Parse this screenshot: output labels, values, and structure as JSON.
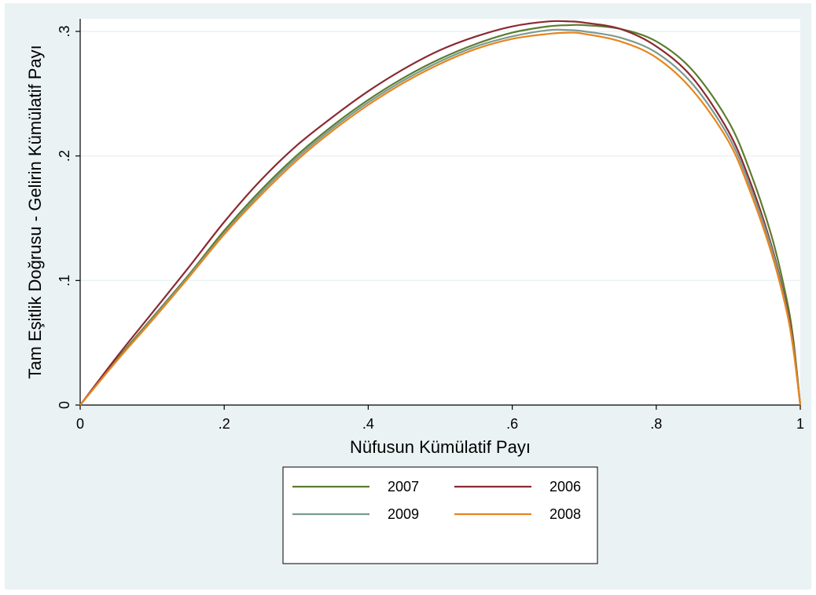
{
  "chart_data": {
    "type": "line",
    "title": "",
    "xlabel": "Nüfusun Kümülatif Payı",
    "ylabel": "Tam Eşitlik Doğrusu - Gelirin Kümülatif Payı",
    "xlim": [
      0,
      1
    ],
    "ylim": [
      0,
      0.3
    ],
    "x_ticks": [
      {
        "value": 0,
        "label": "0"
      },
      {
        "value": 0.2,
        "label": ".2"
      },
      {
        "value": 0.4,
        "label": ".4"
      },
      {
        "value": 0.6,
        "label": ".6"
      },
      {
        "value": 0.8,
        "label": ".8"
      },
      {
        "value": 1,
        "label": "1"
      }
    ],
    "y_ticks": [
      {
        "value": 0,
        "label": "0"
      },
      {
        "value": 0.1,
        "label": ".1"
      },
      {
        "value": 0.2,
        "label": ".2"
      },
      {
        "value": 0.3,
        "label": ".3"
      }
    ],
    "grid": "horizontal",
    "legend_position": "bottom",
    "series": [
      {
        "name": "2007",
        "color": "#5b7d2d",
        "x": [
          0,
          0.05,
          0.1,
          0.15,
          0.2,
          0.25,
          0.3,
          0.35,
          0.4,
          0.45,
          0.5,
          0.55,
          0.6,
          0.65,
          0.68,
          0.7,
          0.75,
          0.8,
          0.85,
          0.9,
          0.93,
          0.96,
          0.98,
          0.99,
          1
        ],
        "y": [
          0,
          0.036,
          0.07,
          0.104,
          0.14,
          0.172,
          0.2,
          0.224,
          0.245,
          0.263,
          0.278,
          0.29,
          0.299,
          0.304,
          0.305,
          0.305,
          0.302,
          0.292,
          0.269,
          0.228,
          0.188,
          0.136,
          0.088,
          0.054,
          0
        ]
      },
      {
        "name": "2006",
        "color": "#8b2a33",
        "x": [
          0,
          0.05,
          0.1,
          0.15,
          0.2,
          0.25,
          0.3,
          0.35,
          0.4,
          0.45,
          0.5,
          0.55,
          0.6,
          0.65,
          0.68,
          0.7,
          0.75,
          0.8,
          0.85,
          0.9,
          0.93,
          0.96,
          0.98,
          0.99,
          1
        ],
        "y": [
          0,
          0.038,
          0.074,
          0.11,
          0.147,
          0.18,
          0.208,
          0.231,
          0.252,
          0.27,
          0.285,
          0.296,
          0.304,
          0.308,
          0.308,
          0.307,
          0.302,
          0.288,
          0.263,
          0.22,
          0.18,
          0.128,
          0.082,
          0.05,
          0
        ]
      },
      {
        "name": "2009",
        "color": "#7a9a93",
        "x": [
          0,
          0.05,
          0.1,
          0.15,
          0.2,
          0.25,
          0.3,
          0.35,
          0.4,
          0.45,
          0.5,
          0.55,
          0.6,
          0.65,
          0.68,
          0.7,
          0.75,
          0.8,
          0.85,
          0.9,
          0.93,
          0.96,
          0.98,
          0.99,
          1
        ],
        "y": [
          0,
          0.035,
          0.069,
          0.103,
          0.138,
          0.17,
          0.198,
          0.222,
          0.243,
          0.261,
          0.276,
          0.288,
          0.296,
          0.301,
          0.301,
          0.3,
          0.295,
          0.283,
          0.258,
          0.216,
          0.176,
          0.126,
          0.08,
          0.048,
          0
        ]
      },
      {
        "name": "2008",
        "color": "#e8851d",
        "x": [
          0,
          0.05,
          0.1,
          0.15,
          0.2,
          0.25,
          0.3,
          0.35,
          0.4,
          0.45,
          0.5,
          0.55,
          0.6,
          0.65,
          0.68,
          0.7,
          0.75,
          0.8,
          0.85,
          0.9,
          0.93,
          0.96,
          0.98,
          0.99,
          1
        ],
        "y": [
          0,
          0.035,
          0.068,
          0.102,
          0.137,
          0.168,
          0.196,
          0.22,
          0.241,
          0.259,
          0.274,
          0.286,
          0.294,
          0.298,
          0.299,
          0.298,
          0.292,
          0.279,
          0.253,
          0.212,
          0.172,
          0.122,
          0.078,
          0.046,
          0
        ]
      }
    ]
  }
}
